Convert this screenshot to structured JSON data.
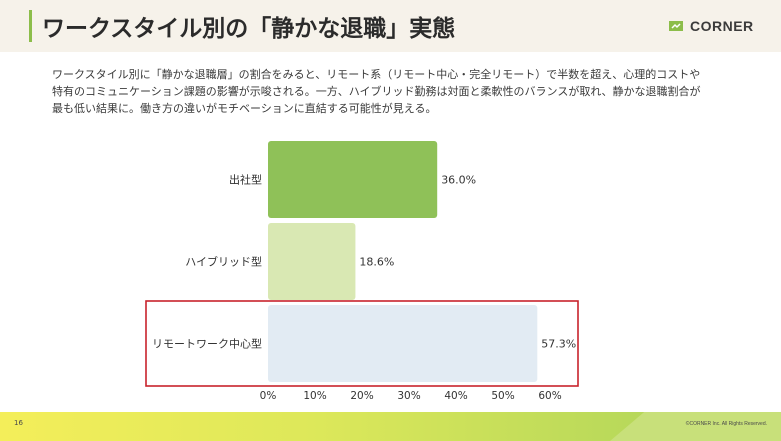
{
  "header": {
    "title": "ワークスタイル別の「静かな退職」実態",
    "logo_text": "CORNER"
  },
  "description": {
    "lines": [
      "ワークスタイル別に「静かな退職層」の割合をみると、リモート系（リモート中心・完全リモート）で半数を超え、心理的コストや",
      "特有のコミュニケーション課題の影響が示唆される。一方、ハイブリッド勤務は対面と柔軟性のバランスが取れ、静かな退職割合が",
      "最も低い結果に。働き方の違いがモチベーションに直結する可能性が見える。"
    ]
  },
  "chart_data": {
    "type": "bar",
    "orientation": "horizontal",
    "categories": [
      "出社型",
      "ハイブリッド型",
      "リモートワーク中心型"
    ],
    "values": [
      36.0,
      18.6,
      57.3
    ],
    "value_labels": [
      "36.0%",
      "18.6%",
      "57.3%"
    ],
    "xlim": [
      0,
      60
    ],
    "x_ticks": [
      0,
      10,
      20,
      30,
      40,
      50,
      60
    ],
    "x_tick_labels": [
      "0%",
      "10%",
      "20%",
      "30%",
      "40%",
      "50%",
      "60%"
    ],
    "colors": [
      "#8fc158",
      "#d9e8b3",
      "#e2ebf3"
    ],
    "highlight_index": 2,
    "highlight_color": "#c8232c",
    "grid": false
  },
  "footer": {
    "page_number": "16",
    "copyright": "©CORNER Inc. All Rights Reserved."
  }
}
